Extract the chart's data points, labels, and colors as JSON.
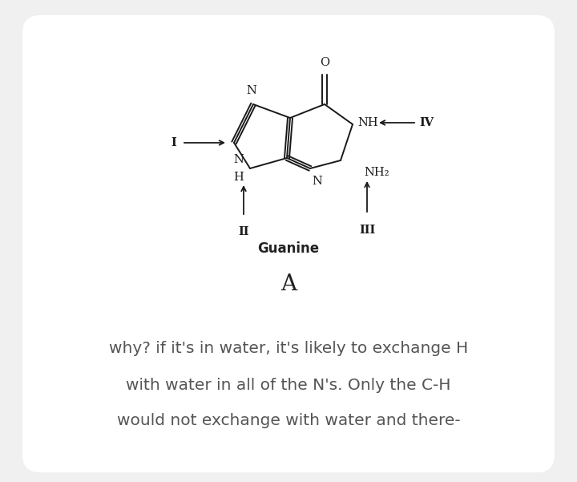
{
  "background_color": "#f0f0f0",
  "card_color": "#ffffff",
  "title_label": "Guanine",
  "title_label_fontsize": 12,
  "section_label": "A",
  "section_label_fontsize": 20,
  "body_text_lines": [
    "why? if it's in water, it's likely to exchange H",
    "with water in all of the N's. Only the C-H",
    "would not exchange with water and there-"
  ],
  "body_fontsize": 14.5,
  "body_color": "#555555",
  "text_color": "#222222",
  "bond_color": "#1a1a1a",
  "lw": 1.4
}
